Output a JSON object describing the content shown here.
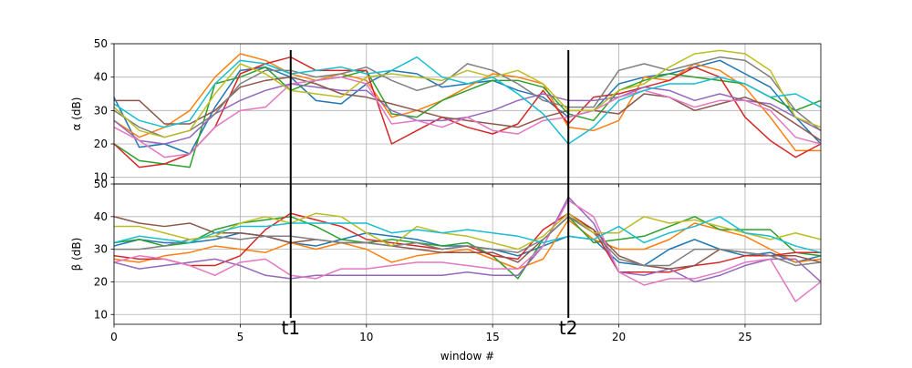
{
  "chart_data": [
    {
      "type": "line",
      "panel": "top",
      "ylabel": "α (dB)",
      "xlabel": "",
      "ylim": [
        8,
        50
      ],
      "xlim": [
        0,
        28
      ],
      "yticks": [
        10,
        20,
        30,
        40,
        50
      ],
      "xticks": [
        0,
        5,
        10,
        15,
        20,
        25
      ],
      "xtick_labels_visible": false,
      "grid": true,
      "x": [
        0,
        1,
        2,
        3,
        4,
        5,
        6,
        7,
        8,
        9,
        10,
        11,
        12,
        13,
        14,
        15,
        16,
        17,
        18,
        19,
        20,
        21,
        22,
        23,
        24,
        25,
        26,
        27,
        28
      ],
      "series": [
        {
          "color": "#1f77b4",
          "values": [
            34,
            19,
            20,
            17,
            31,
            42,
            43,
            40,
            33,
            32,
            38,
            42,
            41,
            37,
            38,
            39,
            36,
            34,
            28,
            30,
            38,
            40,
            41,
            43,
            45,
            41,
            37,
            28,
            20
          ]
        },
        {
          "color": "#ff7f0e",
          "values": [
            27,
            22,
            25,
            30,
            40,
            47,
            45,
            41,
            39,
            41,
            39,
            28,
            30,
            33,
            37,
            41,
            40,
            38,
            25,
            24,
            27,
            40,
            39,
            44,
            42,
            37,
            28,
            18,
            18
          ]
        },
        {
          "color": "#2ca02c",
          "values": [
            20,
            15,
            14,
            13,
            38,
            40,
            43,
            36,
            39,
            40,
            42,
            29,
            28,
            33,
            36,
            39,
            39,
            37,
            29,
            27,
            36,
            39,
            41,
            40,
            39,
            38,
            34,
            30,
            33
          ]
        },
        {
          "color": "#d62728",
          "values": [
            20,
            13,
            14,
            17,
            25,
            41,
            44,
            46,
            42,
            42,
            42,
            20,
            24,
            28,
            25,
            23,
            26,
            36,
            26,
            34,
            35,
            37,
            39,
            43,
            40,
            28,
            21,
            16,
            20
          ]
        },
        {
          "color": "#9467bd",
          "values": [
            27,
            21,
            20,
            22,
            29,
            33,
            36,
            38,
            37,
            36,
            36,
            30,
            27,
            27,
            28,
            30,
            33,
            35,
            33,
            33,
            34,
            37,
            36,
            33,
            35,
            33,
            32,
            28,
            24
          ]
        },
        {
          "color": "#8c564b",
          "values": [
            33,
            33,
            26,
            26,
            30,
            37,
            39,
            40,
            38,
            35,
            34,
            32,
            30,
            28,
            27,
            26,
            25,
            28,
            30,
            30,
            29,
            35,
            34,
            30,
            32,
            34,
            31,
            26,
            21
          ]
        },
        {
          "color": "#e377c2",
          "values": [
            25,
            21,
            16,
            17,
            25,
            30,
            31,
            38,
            39,
            40,
            38,
            26,
            27,
            25,
            28,
            24,
            23,
            27,
            28,
            30,
            34,
            36,
            34,
            31,
            33,
            33,
            30,
            22,
            20
          ]
        },
        {
          "color": "#7f7f7f",
          "values": [
            30,
            25,
            22,
            24,
            29,
            38,
            42,
            42,
            40,
            41,
            43,
            39,
            36,
            38,
            44,
            42,
            38,
            33,
            31,
            31,
            42,
            44,
            42,
            44,
            46,
            45,
            40,
            30,
            24
          ]
        },
        {
          "color": "#bcbd22",
          "values": [
            31,
            24,
            22,
            24,
            35,
            44,
            41,
            36,
            35,
            34,
            40,
            41,
            40,
            39,
            42,
            40,
            42,
            38,
            30,
            30,
            36,
            38,
            43,
            47,
            48,
            47,
            42,
            28,
            25
          ]
        },
        {
          "color": "#17becf",
          "values": [
            32,
            27,
            25,
            27,
            38,
            45,
            44,
            41,
            42,
            43,
            41,
            42,
            46,
            40,
            38,
            40,
            35,
            29,
            20,
            25,
            33,
            36,
            38,
            38,
            40,
            38,
            34,
            35,
            31
          ]
        }
      ]
    },
    {
      "type": "line",
      "panel": "bottom",
      "ylabel": "β (dB)",
      "xlabel": "window #",
      "ylim": [
        7,
        50
      ],
      "xlim": [
        0,
        28
      ],
      "yticks": [
        10,
        20,
        30,
        40,
        50
      ],
      "xticks": [
        0,
        5,
        10,
        15,
        20,
        25
      ],
      "grid": true,
      "x": [
        0,
        1,
        2,
        3,
        4,
        5,
        6,
        7,
        8,
        9,
        10,
        11,
        12,
        13,
        14,
        15,
        16,
        17,
        18,
        19,
        20,
        21,
        22,
        23,
        24,
        25,
        26,
        27,
        28
      ],
      "series": [
        {
          "color": "#1f77b4",
          "values": [
            31,
            33,
            32,
            32,
            33,
            35,
            34,
            32,
            31,
            33,
            35,
            34,
            33,
            31,
            31,
            30,
            28,
            31,
            34,
            33,
            26,
            25,
            30,
            33,
            30,
            28,
            29,
            26,
            28
          ]
        },
        {
          "color": "#ff7f0e",
          "values": [
            27,
            26,
            28,
            29,
            31,
            30,
            29,
            32,
            30,
            32,
            30,
            26,
            28,
            29,
            30,
            27,
            24,
            27,
            39,
            33,
            30,
            30,
            33,
            38,
            36,
            34,
            30,
            26,
            27
          ]
        },
        {
          "color": "#2ca02c",
          "values": [
            32,
            33,
            31,
            32,
            36,
            38,
            39,
            40,
            37,
            33,
            32,
            33,
            32,
            31,
            32,
            28,
            21,
            33,
            40,
            32,
            33,
            34,
            37,
            40,
            36,
            36,
            36,
            29,
            28
          ]
        },
        {
          "color": "#d62728",
          "values": [
            28,
            27,
            27,
            25,
            25,
            28,
            36,
            41,
            39,
            37,
            33,
            32,
            31,
            30,
            31,
            28,
            27,
            36,
            41,
            36,
            23,
            23,
            23,
            25,
            26,
            28,
            28,
            29,
            29
          ]
        },
        {
          "color": "#9467bd",
          "values": [
            26,
            24,
            25,
            26,
            27,
            25,
            22,
            21,
            22,
            22,
            22,
            22,
            22,
            22,
            23,
            22,
            22,
            31,
            46,
            38,
            23,
            22,
            24,
            20,
            22,
            25,
            27,
            27,
            20
          ]
        },
        {
          "color": "#8c564b",
          "values": [
            40,
            38,
            37,
            38,
            35,
            35,
            34,
            32,
            33,
            32,
            32,
            31,
            30,
            29,
            29,
            29,
            26,
            33,
            40,
            36,
            28,
            25,
            24,
            25,
            30,
            29,
            28,
            28,
            26
          ]
        },
        {
          "color": "#e377c2",
          "values": [
            26,
            28,
            27,
            25,
            22,
            26,
            27,
            22,
            21,
            24,
            24,
            25,
            26,
            26,
            25,
            24,
            24,
            31,
            45,
            40,
            23,
            19,
            21,
            21,
            23,
            26,
            27,
            14,
            20
          ]
        },
        {
          "color": "#7f7f7f",
          "values": [
            30,
            30,
            31,
            33,
            34,
            33,
            34,
            34,
            33,
            32,
            32,
            31,
            32,
            30,
            31,
            30,
            29,
            33,
            40,
            35,
            27,
            25,
            25,
            30,
            30,
            29,
            28,
            25,
            26
          ]
        },
        {
          "color": "#bcbd22",
          "values": [
            37,
            37,
            35,
            33,
            34,
            38,
            40,
            38,
            41,
            40,
            35,
            31,
            37,
            35,
            34,
            32,
            30,
            34,
            41,
            35,
            35,
            40,
            38,
            39,
            37,
            35,
            33,
            35,
            33
          ]
        },
        {
          "color": "#17becf",
          "values": [
            32,
            34,
            33,
            32,
            35,
            37,
            37,
            38,
            38,
            38,
            38,
            35,
            36,
            35,
            36,
            35,
            34,
            32,
            34,
            33,
            37,
            32,
            35,
            37,
            40,
            35,
            34,
            31,
            29
          ]
        }
      ]
    }
  ],
  "markers": [
    {
      "label": "t1",
      "x": 7
    },
    {
      "label": "t2",
      "x": 18
    }
  ]
}
